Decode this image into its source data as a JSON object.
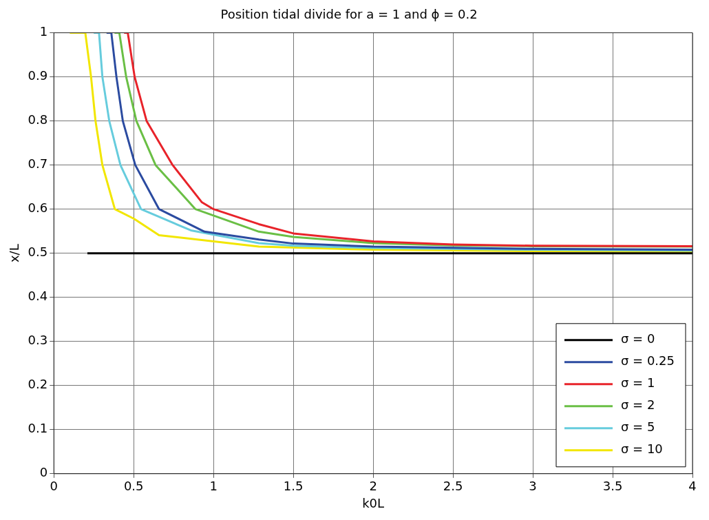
{
  "chart_data": {
    "type": "line",
    "title": "Position tidal divide for a = 1 and ϕ = 0.2",
    "xlabel": "k0L",
    "ylabel": "x/L",
    "xlim": [
      0,
      4
    ],
    "xticks": [
      0,
      0.5,
      1,
      1.5,
      2,
      2.5,
      3,
      3.5,
      4
    ],
    "ylim": [
      0,
      1
    ],
    "yticks": [
      0,
      0.1,
      0.2,
      0.3,
      0.4,
      0.5,
      0.6,
      0.7,
      0.8,
      0.9,
      1
    ],
    "grid": true,
    "legend": "bottom right",
    "marker": "none",
    "line_style": "solid",
    "series": [
      {
        "name": "σ = 0",
        "color": "#000000",
        "x": [
          0.21,
          1,
          2,
          3,
          4
        ],
        "values": [
          0.5,
          0.5,
          0.5,
          0.5,
          0.5
        ]
      },
      {
        "name": "σ = 0.25",
        "color": "#2b4ba0",
        "x": [
          0.33,
          0.36,
          0.392,
          0.432,
          0.51,
          0.659,
          0.943,
          1.284,
          1.5,
          2,
          3,
          4
        ],
        "values": [
          1,
          1,
          0.9,
          0.8,
          0.7,
          0.6,
          0.549,
          0.531,
          0.522,
          0.515,
          0.51,
          0.508
        ]
      },
      {
        "name": "σ = 1",
        "color": "#e8232a",
        "x": [
          0.44,
          0.463,
          0.506,
          0.581,
          0.744,
          0.926,
          1.0,
          1.284,
          1.5,
          2,
          2.5,
          3,
          4
        ],
        "values": [
          1,
          1,
          0.9,
          0.8,
          0.7,
          0.616,
          0.6,
          0.566,
          0.545,
          0.527,
          0.52,
          0.517,
          0.516
        ]
      },
      {
        "name": "σ = 2",
        "color": "#6abf45",
        "x": [
          0.38,
          0.41,
          0.453,
          0.517,
          0.637,
          0.887,
          1.284,
          1.5,
          2,
          2.5,
          3,
          4
        ],
        "values": [
          1,
          1,
          0.9,
          0.8,
          0.7,
          0.6,
          0.549,
          0.537,
          0.523,
          0.518,
          0.516,
          0.515
        ]
      },
      {
        "name": "σ = 5",
        "color": "#66ccdd",
        "x": [
          0.25,
          0.283,
          0.304,
          0.347,
          0.417,
          0.546,
          0.858,
          1.284,
          1.5,
          2,
          3,
          4
        ],
        "values": [
          1,
          1,
          0.9,
          0.8,
          0.7,
          0.6,
          0.552,
          0.523,
          0.517,
          0.512,
          0.508,
          0.506
        ]
      },
      {
        "name": "σ = 10",
        "color": "#f2e600",
        "x": [
          0.1,
          0.197,
          0.233,
          0.261,
          0.304,
          0.382,
          0.503,
          0.659,
          1.284,
          2,
          3,
          4
        ],
        "values": [
          1,
          1,
          0.9,
          0.8,
          0.7,
          0.6,
          0.578,
          0.541,
          0.515,
          0.508,
          0.505,
          0.503
        ]
      }
    ]
  }
}
